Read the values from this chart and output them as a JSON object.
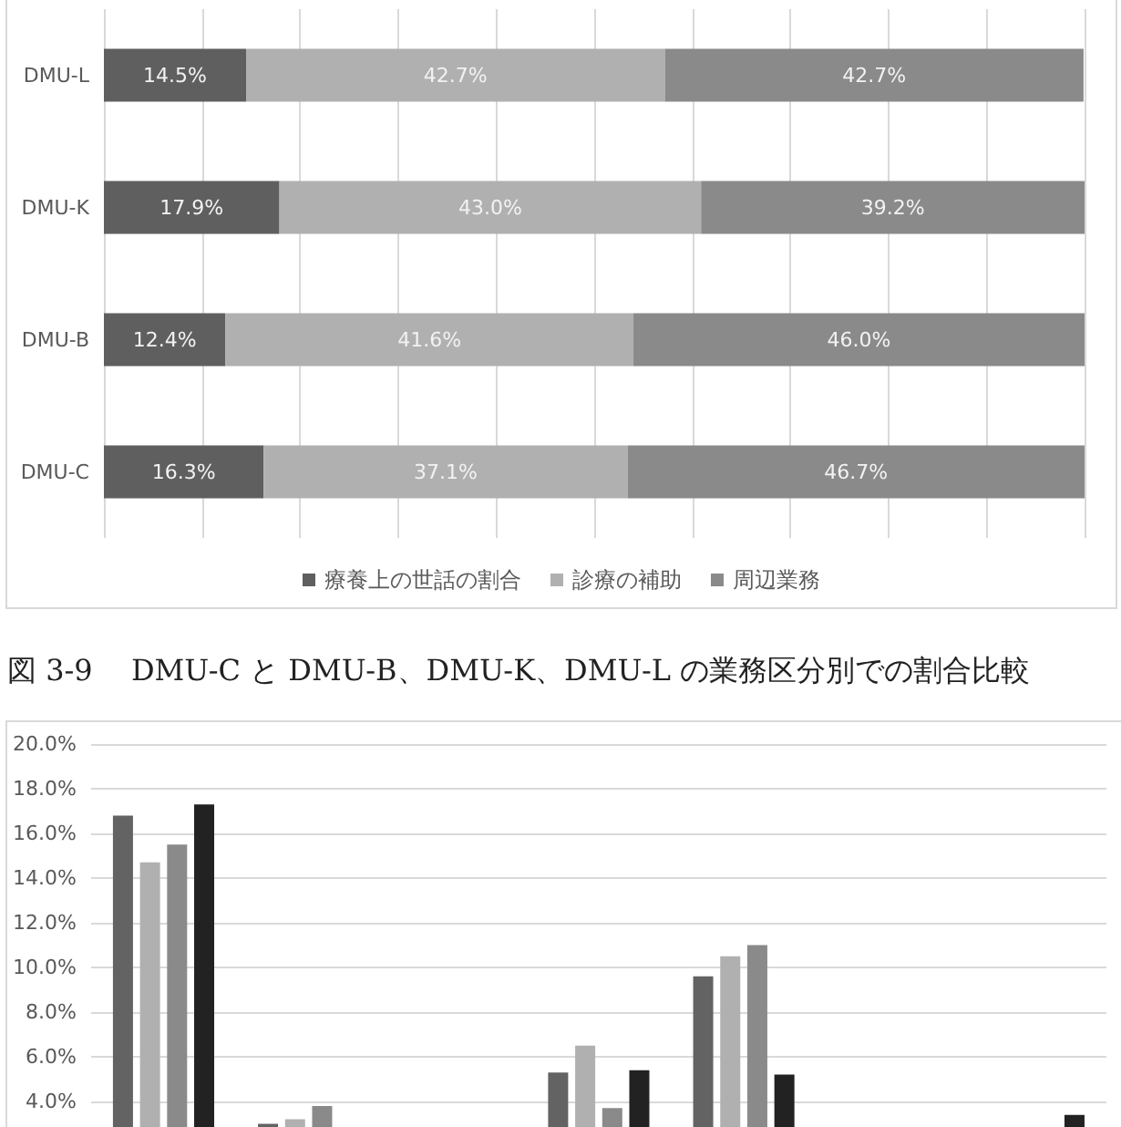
{
  "chart_data": [
    {
      "type": "bar",
      "orientation": "horizontal",
      "stacked": true,
      "categories": [
        "DMU-L",
        "DMU-K",
        "DMU-B",
        "DMU-C"
      ],
      "series": [
        {
          "name": "療養上の世話の割合",
          "color": "#5f5f5f",
          "values": [
            14.5,
            17.9,
            12.4,
            16.3
          ],
          "value_labels": [
            "14.5%",
            "17.9%",
            "12.4%",
            "16.3%"
          ]
        },
        {
          "name": "診療の補助",
          "color": "#b0b0b0",
          "values": [
            42.7,
            43.0,
            41.6,
            37.1
          ],
          "value_labels": [
            "42.7%",
            "43.0%",
            "41.6%",
            "37.1%"
          ]
        },
        {
          "name": "周辺業務",
          "color": "#8a8a8a",
          "values": [
            42.7,
            39.2,
            46.0,
            46.7
          ],
          "value_labels": [
            "42.7%",
            "39.2%",
            "46.0%",
            "46.7%"
          ]
        }
      ],
      "xlim": [
        0,
        100
      ],
      "xticks": [
        {
          "value": 0,
          "label": null
        },
        {
          "value": 10,
          "label": null
        },
        {
          "value": 20,
          "label": null
        },
        {
          "value": 30,
          "label": null
        },
        {
          "value": 40,
          "label": null
        },
        {
          "value": 50,
          "label": null
        },
        {
          "value": 60,
          "label": null
        },
        {
          "value": 70,
          "label": null
        },
        {
          "value": 80,
          "label": null
        },
        {
          "value": 90,
          "label": null
        },
        {
          "value": 100,
          "label": null
        }
      ],
      "grid": "x",
      "legend": "bottom",
      "tick_labels": "y",
      "annotations": [
        "図 3-9　 DMU-C と DMU-B、DMU-K、DMU-L の業務区分別での割合比較"
      ]
    },
    {
      "type": "bar",
      "categories": [
        null,
        null,
        null,
        null,
        null,
        null,
        null
      ],
      "series": [
        {
          "color": "#636363",
          "values": [
            16.8,
            3.0,
            null,
            5.3,
            9.6,
            null,
            null
          ]
        },
        {
          "color": "#b0b0b0",
          "values": [
            14.7,
            3.2,
            null,
            6.5,
            10.5,
            null,
            null
          ]
        },
        {
          "color": "#8a8a8a",
          "values": [
            15.5,
            3.8,
            null,
            3.7,
            11.0,
            null,
            null
          ]
        },
        {
          "color": "#222222",
          "values": [
            17.3,
            null,
            null,
            5.4,
            5.2,
            null,
            3.4
          ]
        }
      ],
      "ylim": [
        0,
        20
      ],
      "yticks": [
        {
          "value": 4,
          "label": "4.0%"
        },
        {
          "value": 6,
          "label": "6.0%"
        },
        {
          "value": 8,
          "label": "8.0%"
        },
        {
          "value": 10,
          "label": "10.0%"
        },
        {
          "value": 12,
          "label": "12.0%"
        },
        {
          "value": 14,
          "label": "14.0%"
        },
        {
          "value": 16,
          "label": "16.0%"
        },
        {
          "value": 18,
          "label": "18.0%"
        },
        {
          "value": 20,
          "label": "20.0%"
        }
      ],
      "grid": "y",
      "tick_labels": "y"
    }
  ]
}
